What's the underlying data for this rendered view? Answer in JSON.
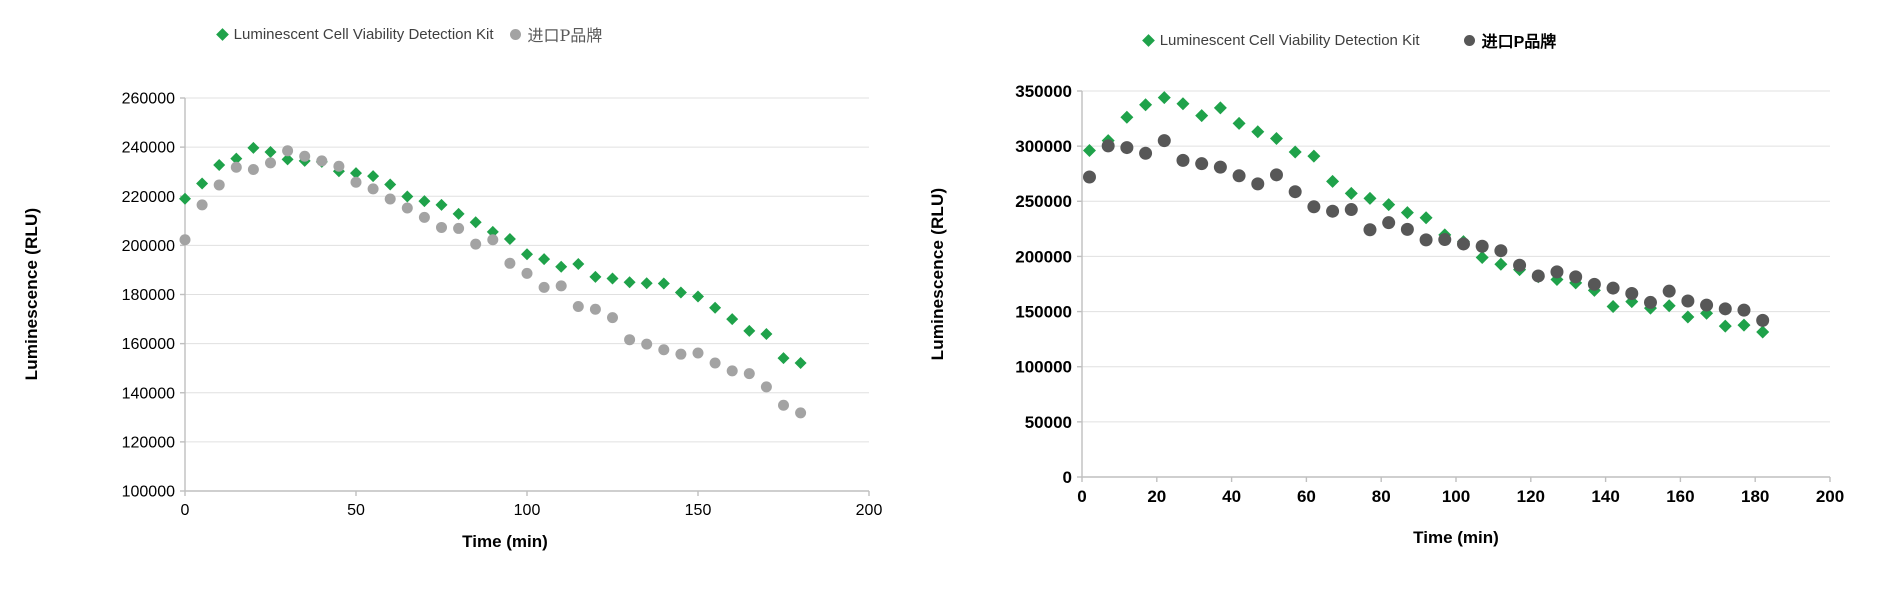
{
  "page": {
    "background": "#FFFFFF"
  },
  "legend": {
    "kit_label": "Luminescent Cell Viability Detection Kit",
    "brand_label": "进口P品牌"
  },
  "colors": {
    "kit_green": "#1FA24A",
    "brand_gray_left": "#A3A3A3",
    "brand_gray_right": "#575757",
    "gridline": "#E0E0E0",
    "axis": "#BFBFBF"
  },
  "chart_data": [
    {
      "type": "scatter",
      "title": "",
      "xlabel": "Time (min)",
      "ylabel": "Luminescence  (RLU)",
      "xlim": [
        0,
        200
      ],
      "ylim": [
        100000,
        260000
      ],
      "x_ticks": [
        0,
        50,
        100,
        150,
        200
      ],
      "y_ticks": [
        100000,
        120000,
        140000,
        160000,
        180000,
        200000,
        220000,
        240000,
        260000
      ],
      "grid": true,
      "legend_position": "top",
      "series": [
        {
          "name": "Luminescent Cell Viability Detection Kit",
          "marker": "diamond",
          "color": "#1FA24A",
          "x": [
            0,
            5,
            10,
            15,
            20,
            25,
            30,
            35,
            40,
            45,
            50,
            55,
            60,
            65,
            70,
            75,
            80,
            85,
            90,
            95,
            100,
            105,
            110,
            115,
            120,
            125,
            130,
            135,
            140,
            145,
            150,
            155,
            160,
            165,
            170,
            175,
            180
          ],
          "y": [
            219000,
            225200,
            232700,
            235300,
            239700,
            238000,
            235000,
            234400,
            234000,
            230200,
            229400,
            228200,
            224800,
            219900,
            218000,
            216500,
            212800,
            209400,
            205500,
            202600,
            196400,
            194400,
            191300,
            192400,
            187200,
            186500,
            185000,
            184600,
            184500,
            180800,
            179200,
            174600,
            170000,
            165200,
            163900,
            154100,
            152100
          ]
        },
        {
          "name": "进口P品牌",
          "marker": "circle",
          "color": "#A3A3A3",
          "x": [
            0,
            5,
            10,
            15,
            20,
            25,
            30,
            35,
            40,
            45,
            50,
            55,
            60,
            65,
            70,
            75,
            80,
            85,
            90,
            95,
            100,
            105,
            110,
            115,
            120,
            125,
            130,
            135,
            140,
            145,
            150,
            155,
            160,
            165,
            170,
            175,
            180
          ],
          "y": [
            202300,
            216500,
            224600,
            231800,
            230900,
            233600,
            238500,
            236300,
            234400,
            232200,
            225700,
            223000,
            218900,
            215200,
            211400,
            207300,
            206900,
            200500,
            202300,
            192700,
            188600,
            182900,
            183500,
            175100,
            174000,
            170600,
            161600,
            159800,
            157500,
            155700,
            156200,
            152100,
            148900,
            147800,
            142400,
            134900,
            131800
          ]
        }
      ]
    },
    {
      "type": "scatter",
      "title": "",
      "xlabel": "Time  (min)",
      "ylabel": "Luminescence  (RLU)",
      "xlim": [
        0,
        200
      ],
      "ylim": [
        0,
        350000
      ],
      "x_ticks": [
        0,
        20,
        40,
        60,
        80,
        100,
        120,
        140,
        160,
        180,
        200
      ],
      "y_ticks": [
        0,
        50000,
        100000,
        150000,
        200000,
        250000,
        300000,
        350000
      ],
      "grid": true,
      "legend_position": "top",
      "series": [
        {
          "name": "Luminescent Cell Viability Detection Kit",
          "marker": "diamond",
          "color": "#1FA24A",
          "x": [
            2,
            7,
            12,
            17,
            22,
            27,
            32,
            37,
            42,
            47,
            52,
            57,
            62,
            67,
            72,
            77,
            82,
            87,
            92,
            97,
            102,
            107,
            112,
            117,
            122,
            127,
            132,
            137,
            142,
            147,
            152,
            157,
            162,
            167,
            172,
            177,
            182
          ],
          "y": [
            296000,
            305000,
            326200,
            337500,
            344000,
            338400,
            327700,
            334700,
            320600,
            313000,
            306900,
            294700,
            291000,
            268000,
            257200,
            252600,
            247000,
            239700,
            235100,
            219500,
            213400,
            199000,
            192900,
            188000,
            181600,
            179100,
            176000,
            169200,
            154600,
            159000,
            153100,
            155300,
            145100,
            148500,
            136800,
            137700,
            131500
          ]
        },
        {
          "name": "进口P品牌",
          "marker": "circle",
          "color": "#575757",
          "x": [
            2,
            7,
            12,
            17,
            22,
            27,
            32,
            37,
            42,
            47,
            52,
            57,
            62,
            67,
            72,
            77,
            82,
            87,
            92,
            97,
            102,
            107,
            112,
            117,
            122,
            127,
            132,
            137,
            142,
            147,
            152,
            157,
            162,
            167,
            172,
            177,
            182
          ],
          "y": [
            272000,
            300200,
            298700,
            293500,
            305000,
            287100,
            284100,
            281000,
            273100,
            265800,
            274000,
            258700,
            245000,
            241000,
            242500,
            224200,
            230600,
            224500,
            215000,
            215300,
            211300,
            209200,
            205200,
            192000,
            182300,
            186000,
            181500,
            174700,
            171300,
            166400,
            158300,
            168500,
            159600,
            155900,
            152500,
            151300,
            142000
          ]
        }
      ]
    }
  ]
}
